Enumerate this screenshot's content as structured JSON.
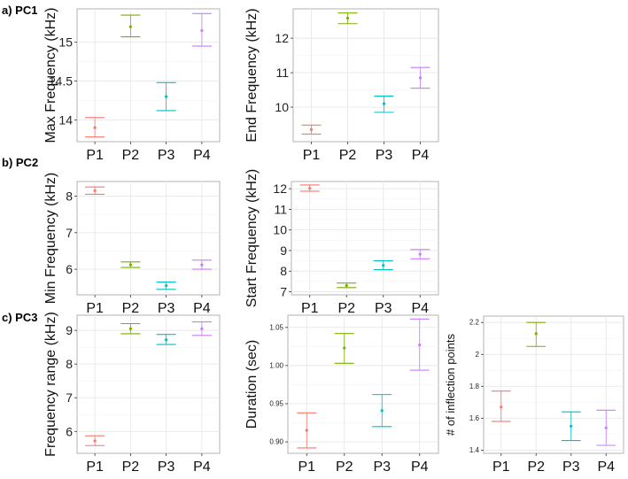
{
  "sections": [
    {
      "label": "a) PC1"
    },
    {
      "label": "b) PC2"
    },
    {
      "label": "c) PC3"
    }
  ],
  "series_colors": {
    "P1": "#F8766D",
    "P2": "#7CAE00",
    "P3": "#00BFC4",
    "P4": "#C77CFF"
  },
  "chart_data": [
    {
      "type": "scatter",
      "ylabel": "Max Frequency (kHz)",
      "categories": [
        "P1",
        "P2",
        "P3",
        "P4"
      ],
      "yticks": [
        14,
        14.5,
        15
      ],
      "ylim": [
        13.72,
        15.43
      ],
      "values": [
        13.9,
        15.2,
        14.3,
        15.15
      ],
      "lower": [
        13.78,
        15.07,
        14.12,
        14.95
      ],
      "upper": [
        14.03,
        15.35,
        14.48,
        15.37
      ]
    },
    {
      "type": "scatter",
      "ylabel": "End Frequency (kHz)",
      "categories": [
        "P1",
        "P2",
        "P3",
        "P4"
      ],
      "yticks": [
        10,
        11,
        12
      ],
      "ylim": [
        9.0,
        12.85
      ],
      "values": [
        9.35,
        12.58,
        10.1,
        10.85
      ],
      "lower": [
        9.22,
        12.42,
        9.85,
        10.55
      ],
      "upper": [
        9.48,
        12.73,
        10.32,
        11.15
      ]
    },
    {
      "type": "scatter",
      "ylabel": "Min Frequency (kHz)",
      "categories": [
        "P1",
        "P2",
        "P3",
        "P4"
      ],
      "yticks": [
        6,
        7,
        8
      ],
      "ylim": [
        5.3,
        8.4
      ],
      "values": [
        8.15,
        6.12,
        5.55,
        6.12
      ],
      "lower": [
        8.05,
        6.05,
        5.45,
        6.0
      ],
      "upper": [
        8.25,
        6.2,
        5.65,
        6.25
      ]
    },
    {
      "type": "scatter",
      "ylabel": "Start Frequency (kHz)",
      "categories": [
        "P1",
        "P2",
        "P3",
        "P4"
      ],
      "yticks": [
        7,
        8,
        9,
        10,
        11,
        12
      ],
      "ylim": [
        6.85,
        12.35
      ],
      "values": [
        12.02,
        7.3,
        8.28,
        8.82
      ],
      "lower": [
        11.88,
        7.2,
        8.07,
        8.6
      ],
      "upper": [
        12.18,
        7.42,
        8.5,
        9.05
      ]
    },
    {
      "type": "scatter",
      "ylabel": "Frequency range (kHz)",
      "categories": [
        "P1",
        "P2",
        "P3",
        "P4"
      ],
      "yticks": [
        6,
        7,
        8,
        9
      ],
      "ylim": [
        5.35,
        9.45
      ],
      "values": [
        5.72,
        9.05,
        8.72,
        9.05
      ],
      "lower": [
        5.58,
        8.9,
        8.58,
        8.85
      ],
      "upper": [
        5.87,
        9.2,
        8.88,
        9.25
      ]
    },
    {
      "type": "scatter",
      "ylabel": "Duration (sec)",
      "categories": [
        "P1",
        "P2",
        "P3",
        "P4"
      ],
      "yticks": [
        0.9,
        0.95,
        1.0,
        1.05
      ],
      "ytick_labels": [
        "0.90",
        "0.95",
        "1.00",
        "1.05"
      ],
      "ylim": [
        0.885,
        1.066
      ],
      "values": [
        0.915,
        1.023,
        0.941,
        1.027
      ],
      "lower": [
        0.892,
        1.003,
        0.92,
        0.994
      ],
      "upper": [
        0.938,
        1.042,
        0.962,
        1.061
      ]
    },
    {
      "type": "scatter",
      "ylabel": "# of inflection points",
      "categories": [
        "P1",
        "P2",
        "P3",
        "P4"
      ],
      "yticks": [
        1.4,
        1.6,
        1.8,
        2.0,
        2.2
      ],
      "ylim": [
        1.38,
        2.24
      ],
      "values": [
        1.67,
        2.13,
        1.55,
        1.54
      ],
      "lower": [
        1.58,
        2.05,
        1.46,
        1.43
      ],
      "upper": [
        1.77,
        2.2,
        1.64,
        1.65
      ]
    }
  ]
}
